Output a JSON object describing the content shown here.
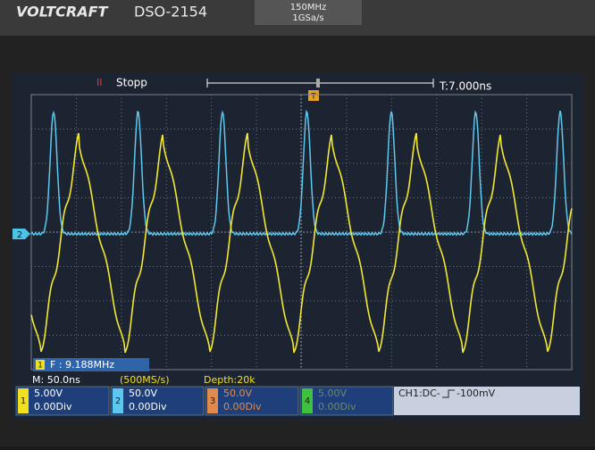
{
  "header": {
    "brand": "VOLTCRAFT",
    "model": "DSO-2154",
    "bandwidth": "150MHz",
    "sample_rate": "1GSa/s"
  },
  "status_bar": {
    "run_state": "Stopp",
    "trigger_time": "T:7.000ns",
    "trigger_marker": "T",
    "ch2_marker": "2"
  },
  "measurement": {
    "channel": "1",
    "frequency": "F : 9.188MHz"
  },
  "timebase": {
    "scale": "M: 50.0ns",
    "sample_rate": "(500MS/s)",
    "depth": "Depth:20k"
  },
  "channels": [
    {
      "number": "1",
      "volts": "5.00V",
      "offset": "0.00Div"
    },
    {
      "number": "2",
      "volts": "50.0V",
      "offset": "0.00Div"
    },
    {
      "number": "3",
      "volts": "50.0V",
      "offset": "0.00Div"
    },
    {
      "number": "4",
      "volts": "5.00V",
      "offset": "0.00Div"
    }
  ],
  "trigger": {
    "source": "CH1:DC-",
    "level": "-100mV"
  }
}
